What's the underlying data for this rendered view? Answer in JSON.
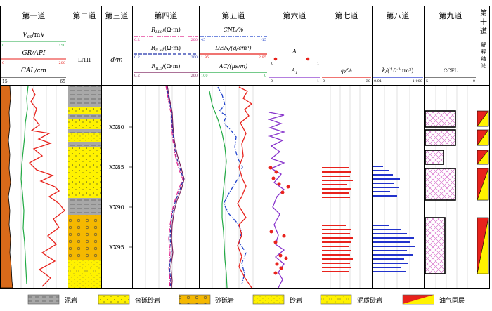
{
  "tracks": {
    "t1": {
      "title": "第一道",
      "vsp_label": "V",
      "vsp_sub": "sp",
      "vsp_unit": "/mV",
      "vsp_min": "0",
      "vsp_max": "150",
      "gr_label": "GR/API",
      "gr_min": "0",
      "gr_max": "200",
      "cal_label": "CAL/cm",
      "cal_min": "15",
      "cal_max": "65"
    },
    "t2": {
      "title": "第二道",
      "lith_label": "LITH"
    },
    "t3": {
      "title": "第三道",
      "depth_label": "d/m",
      "depths": [
        "XX80",
        "XX85",
        "XX90",
        "XX95"
      ]
    },
    "t4": {
      "title": "第四道",
      "curves": [
        {
          "name": "R",
          "sub": "LLS",
          "unit": "/(Ω·m)",
          "min": "0.2",
          "max": "200",
          "color": "#e0218a"
        },
        {
          "name": "R",
          "sub": "ILM",
          "unit": "/(Ω·m)",
          "min": "0.2",
          "max": "200",
          "color": "#2233aa"
        },
        {
          "name": "R",
          "sub": "ILD",
          "unit": "/(Ω·m)",
          "min": "0.2",
          "max": "200",
          "color": "#7a1f5a"
        }
      ]
    },
    "t5": {
      "title": "第五道",
      "cnl_label": "CNL/%",
      "cnl_min": "45",
      "cnl_max": "-15",
      "den_label": "DEN/(g/cm³)",
      "den_min": "1.95",
      "den_max": "2.95",
      "ac_label": "AC/(μs/m)",
      "ac_min": "100",
      "ac_max": "0"
    },
    "t6": {
      "title": "第六道",
      "a_label": "A",
      "a1_label": "A",
      "a1_sub": "1",
      "min": "0",
      "max": "1"
    },
    "t7": {
      "title": "第七道",
      "phi_label": "φ/%",
      "min": "0",
      "max": "30"
    },
    "t8": {
      "title": "第八道",
      "k_label": "k/(10",
      "k_sup": "-3",
      "k_unit": "μm²)",
      "min": "0.01",
      "max": "1 000"
    },
    "t9": {
      "title": "第九道",
      "ccfl_label": "CCFL",
      "min": "5",
      "max": "0"
    },
    "t10": {
      "title_lines": [
        "第",
        "十",
        "道"
      ],
      "interp_lines": [
        "解",
        "释",
        "结",
        "论"
      ]
    }
  },
  "legend": [
    {
      "label": "泥岩",
      "pattern": "mudstone"
    },
    {
      "label": "含砾砂岩",
      "pattern": "pebbly-sandstone"
    },
    {
      "label": "砂砾岩",
      "pattern": "glutenite"
    },
    {
      "label": "砂岩",
      "pattern": "sandstone"
    },
    {
      "label": "泥质砂岩",
      "pattern": "argillaceous-sandstone"
    },
    {
      "label": "油气同层",
      "pattern": "oil-gas-layer"
    }
  ],
  "colors": {
    "gr": "#e8221c",
    "vsp": "#22aa44",
    "cal": "#d96a1a",
    "rlls": "#e0218a",
    "rilm": "#2233aa",
    "rild": "#7a1f5a",
    "cnl": "#2244cc",
    "den": "#e8221c",
    "ac": "#22aa44",
    "a_curve": "#8833cc",
    "a_points": "#e8221c",
    "phi": "#e8221c",
    "k": "#2233cc",
    "ccfl": "#cc33aa",
    "sand": "#fff200",
    "mud": "#9a9a9a"
  }
}
